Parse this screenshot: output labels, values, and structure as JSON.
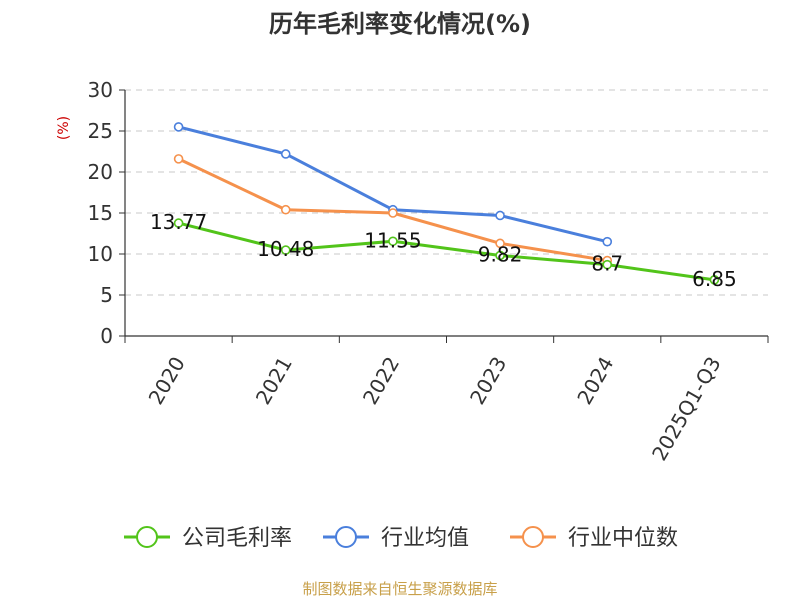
{
  "chart_data": {
    "type": "line",
    "title": "历年毛利率变化情况(%)",
    "ylabel": "(%)",
    "categories": [
      "2020",
      "2021",
      "2022",
      "2023",
      "2024",
      "2025Q1-Q3"
    ],
    "yticks": [
      "0",
      "5",
      "10",
      "15",
      "20",
      "25",
      "30"
    ],
    "ylim": [
      0,
      30
    ],
    "grid": true,
    "legend_position": "bottom",
    "series": [
      {
        "name": "公司毛利率",
        "color": "#52c41a",
        "values": [
          13.77,
          10.48,
          11.55,
          9.82,
          8.7,
          6.85
        ],
        "labels": [
          "13.77",
          "10.48",
          "11.55",
          "9.82",
          "8.7",
          "6.85"
        ]
      },
      {
        "name": "行业均值",
        "color": "#4a7fdc",
        "values": [
          25.5,
          22.2,
          15.4,
          14.7,
          11.5,
          null
        ]
      },
      {
        "name": "行业中位数",
        "color": "#f5914c",
        "values": [
          21.6,
          15.4,
          15.0,
          11.3,
          9.2,
          null
        ]
      }
    ]
  },
  "footer": {
    "source": "制图数据来自恒生聚源数据库"
  }
}
